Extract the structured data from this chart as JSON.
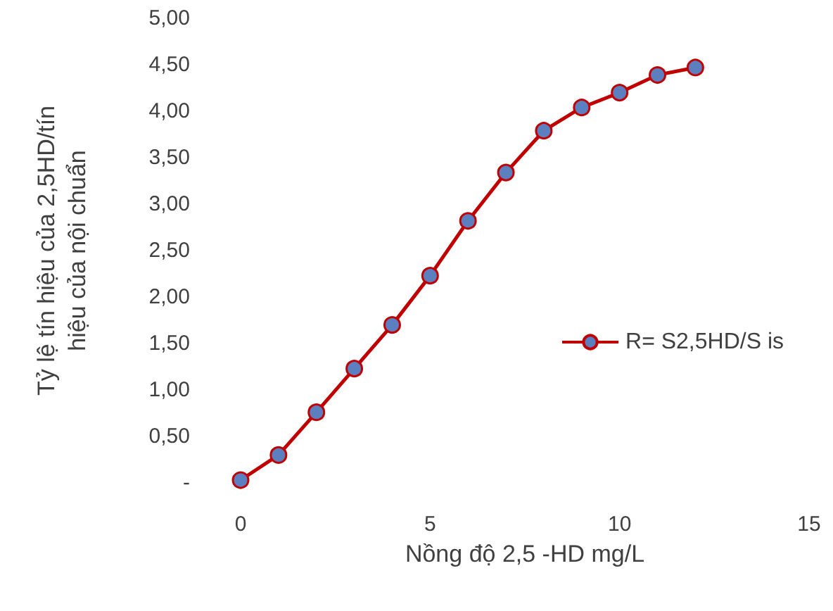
{
  "chart_data": {
    "type": "line",
    "xlabel": "Nồng độ 2,5 -HD mg/L",
    "ylabel": "Tỷ lệ tín hiệu của 2,5HD/tín\nhiệu của nội chuẩn",
    "x": [
      0,
      1,
      2,
      3,
      4,
      5,
      6,
      7,
      8,
      9,
      10,
      11,
      12
    ],
    "series": [
      {
        "name": "R= S2,5HD/S is",
        "color": "#c00000",
        "values": [
          0.03,
          0.3,
          0.76,
          1.23,
          1.7,
          2.23,
          2.82,
          3.34,
          3.79,
          4.04,
          4.2,
          4.39,
          4.47
        ]
      }
    ],
    "xlim": [
      0,
      15
    ],
    "xticks": [
      0,
      5,
      10,
      15
    ],
    "ylim": [
      0,
      5
    ],
    "yticks": [
      {
        "value": 0,
        "label": "-"
      },
      {
        "value": 0.5,
        "label": "0,50"
      },
      {
        "value": 1,
        "label": "1,00"
      },
      {
        "value": 1.5,
        "label": "1,50"
      },
      {
        "value": 2,
        "label": "2,00"
      },
      {
        "value": 2.5,
        "label": "2,50"
      },
      {
        "value": 3,
        "label": "3,00"
      },
      {
        "value": 3.5,
        "label": "3,50"
      },
      {
        "value": 4,
        "label": "4,00"
      },
      {
        "value": 4.5,
        "label": "4,50"
      },
      {
        "value": 5,
        "label": "5,00"
      }
    ],
    "legend": "right",
    "marker": "circle",
    "line_style": "solid",
    "grid": false
  }
}
